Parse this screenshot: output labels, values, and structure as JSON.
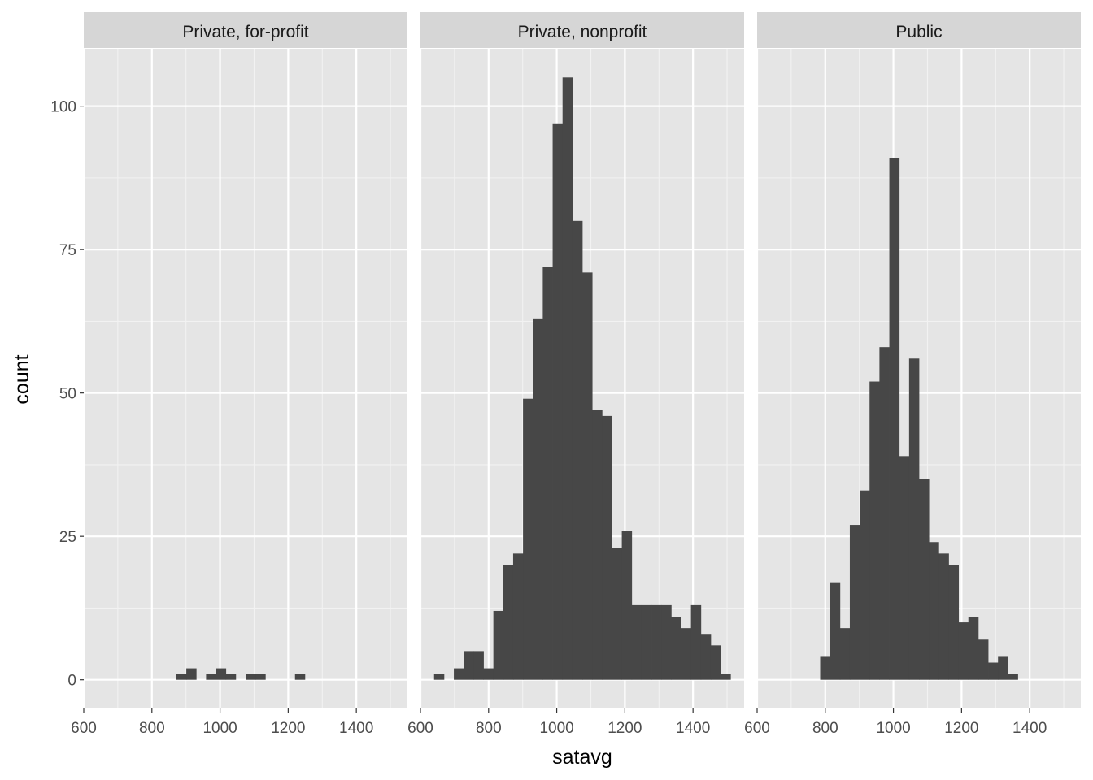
{
  "chart_data": {
    "type": "bar",
    "xlabel": "satavg",
    "ylabel": "count",
    "xlim": [
      600,
      1550
    ],
    "ylim": [
      -5,
      110
    ],
    "x_ticks": [
      "600",
      "800",
      "1000",
      "1200",
      "1400"
    ],
    "y_ticks": [
      "0",
      "25",
      "50",
      "75",
      "100"
    ],
    "bin_width": 29,
    "bin_start": 640,
    "grid": true,
    "bar_color": "#474747",
    "panel_background": "#e5e5e5",
    "strip_background": "#d6d6d6",
    "panels": [
      {
        "name": "Private, for-profit",
        "counts": [
          0,
          0,
          0,
          0,
          0,
          0,
          0,
          0,
          1,
          2,
          0,
          1,
          2,
          1,
          0,
          1,
          1,
          0,
          0,
          0,
          1,
          0,
          0,
          0,
          0,
          0,
          0,
          0,
          0,
          0,
          0,
          0
        ]
      },
      {
        "name": "Private, nonprofit",
        "counts": [
          1,
          0,
          2,
          5,
          5,
          2,
          12,
          20,
          22,
          49,
          63,
          72,
          97,
          105,
          80,
          71,
          47,
          46,
          23,
          26,
          13,
          13,
          13,
          13,
          11,
          9,
          13,
          8,
          6,
          1,
          0,
          0
        ]
      },
      {
        "name": "Public",
        "counts": [
          0,
          0,
          0,
          0,
          0,
          4,
          17,
          9,
          27,
          33,
          52,
          58,
          91,
          39,
          56,
          35,
          24,
          22,
          20,
          10,
          11,
          7,
          3,
          4,
          1,
          0,
          0,
          0,
          0,
          0,
          0,
          0
        ]
      }
    ]
  }
}
